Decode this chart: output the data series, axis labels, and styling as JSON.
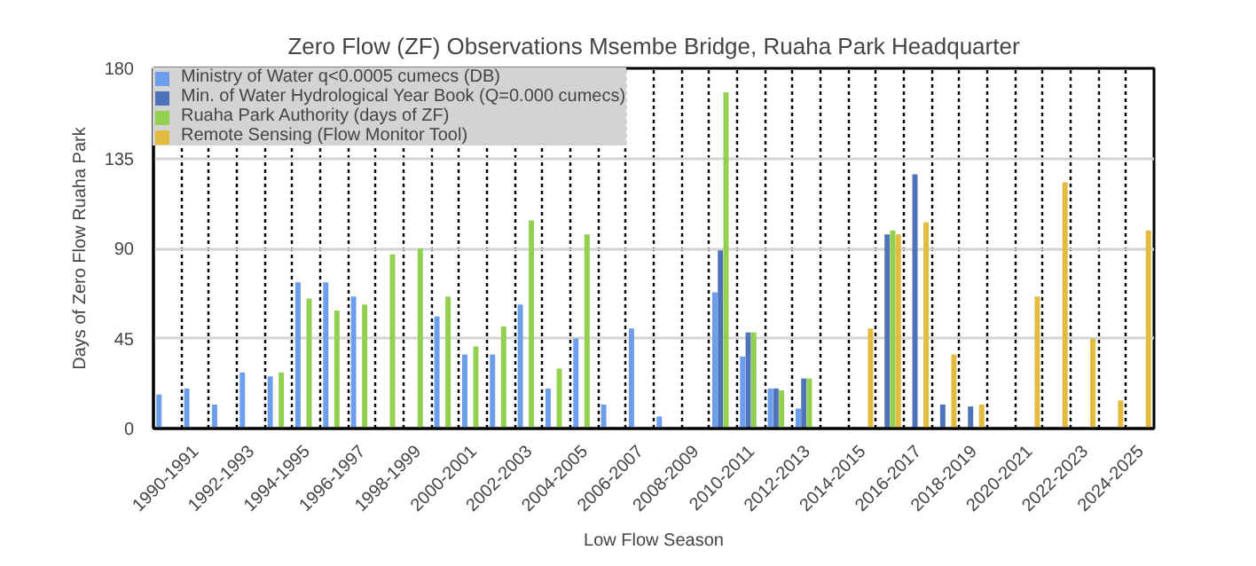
{
  "chart_data": {
    "type": "bar",
    "title": "Zero Flow (ZF) Observations Msembe Bridge, Ruaha Park Headquarter",
    "xlabel": "Low Flow Season",
    "ylabel": "Days of Zero Flow Ruaha Park",
    "categories": [
      null,
      "1990-1991",
      null,
      "1992-1993",
      null,
      "1994-1995",
      null,
      "1996-1997",
      null,
      "1998-1999",
      null,
      "2000-2001",
      null,
      "2002-2003",
      null,
      "2004-2005",
      null,
      "2006-2007",
      null,
      "2008-2009",
      null,
      "2010-2011",
      null,
      "2012-2013",
      null,
      "2014-2015",
      null,
      "2016-2017",
      null,
      "2018-2019",
      null,
      "2020-2021",
      null,
      "2022-2023",
      null,
      "2024-2025"
    ],
    "series": [
      {
        "name": "Ministry of Water q<0.0005 cumecs (DB)",
        "color": "#6d9eeb",
        "values": [
          17,
          20,
          12,
          28,
          26,
          73,
          73,
          66,
          null,
          null,
          56,
          37,
          37,
          62,
          20,
          45,
          12,
          50,
          6,
          null,
          68,
          36,
          20,
          10,
          null,
          null,
          null,
          null,
          null,
          null,
          null,
          null,
          null,
          null,
          null,
          null
        ]
      },
      {
        "name": "Min. of Water Hydrological Year Book (Q=0.000 cumecs)",
        "color": "#4f73b8",
        "values": [
          null,
          null,
          null,
          null,
          null,
          null,
          null,
          null,
          null,
          null,
          null,
          null,
          null,
          null,
          null,
          null,
          null,
          null,
          null,
          null,
          89,
          48,
          20,
          25,
          null,
          null,
          97,
          127,
          12,
          11,
          null,
          null,
          null,
          null,
          null,
          null
        ]
      },
      {
        "name": "Ruaha Park Authority (days of ZF)",
        "color": "#92d050",
        "values": [
          null,
          null,
          null,
          null,
          28,
          65,
          59,
          62,
          87,
          90,
          66,
          41,
          51,
          104,
          30,
          97,
          null,
          null,
          null,
          null,
          168,
          48,
          19,
          25,
          null,
          null,
          99,
          null,
          null,
          null,
          null,
          null,
          null,
          null,
          null,
          null
        ]
      },
      {
        "name": "Remote Sensing (Flow Monitor Tool)",
        "color": "#e3bc3f",
        "values": [
          null,
          null,
          null,
          null,
          null,
          null,
          null,
          null,
          null,
          null,
          null,
          null,
          null,
          null,
          null,
          null,
          null,
          null,
          null,
          null,
          null,
          null,
          null,
          null,
          null,
          50,
          97,
          103,
          37,
          12,
          null,
          66,
          123,
          45,
          14,
          99
        ]
      }
    ],
    "ylim": [
      0,
      180
    ],
    "yticks": [
      0,
      45,
      90,
      135,
      180
    ],
    "grid": true,
    "legend": "top left"
  }
}
